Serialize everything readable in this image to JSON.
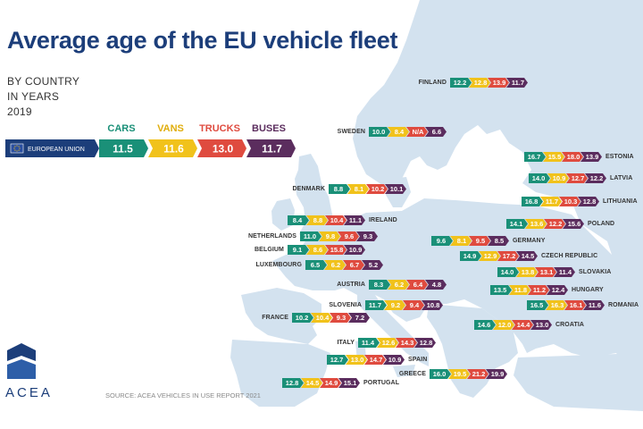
{
  "header": {
    "title": "Average age of the EU vehicle fleet",
    "subtitle_lines": [
      "BY COUNTRY",
      "IN YEARS",
      "2019"
    ]
  },
  "colors": {
    "cars": "#1a9078",
    "vans": "#f1c21b",
    "trucks": "#df4b3f",
    "buses": "#5b2d5e",
    "map": "#d3e2ef",
    "brand": "#1c3e7a"
  },
  "categories": [
    {
      "key": "cars",
      "label": "CARS",
      "color": "#1a9078"
    },
    {
      "key": "vans",
      "label": "VANS",
      "color": "#f1c21b"
    },
    {
      "key": "trucks",
      "label": "TRUCKS",
      "color": "#df4b3f"
    },
    {
      "key": "buses",
      "label": "BUSES",
      "color": "#5b2d5e"
    }
  ],
  "footer": {
    "logo": "ACEA",
    "source": "SOURCE: ACEA VEHICLES IN USE REPORT 2021"
  },
  "chart_data": {
    "type": "table",
    "title": "Average age of the EU vehicle fleet",
    "columns": [
      "CARS",
      "VANS",
      "TRUCKS",
      "BUSES"
    ],
    "eu": {
      "name": "EUROPEAN UNION",
      "values": [
        "11.5",
        "11.6",
        "13.0",
        "11.7"
      ]
    },
    "rows": [
      {
        "name": "FINLAND",
        "values": [
          "12.2",
          "12.8",
          "13.9",
          "11.7"
        ]
      },
      {
        "name": "SWEDEN",
        "values": [
          "10.0",
          "8.4",
          "N/A",
          "6.6"
        ]
      },
      {
        "name": "ESTONIA",
        "values": [
          "16.7",
          "15.5",
          "18.0",
          "13.9"
        ]
      },
      {
        "name": "LATVIA",
        "values": [
          "14.0",
          "10.9",
          "12.7",
          "12.2"
        ]
      },
      {
        "name": "LITHUANIA",
        "values": [
          "16.8",
          "11.7",
          "10.3",
          "12.8"
        ]
      },
      {
        "name": "DENMARK",
        "values": [
          "8.8",
          "8.1",
          "10.2",
          "10.1"
        ]
      },
      {
        "name": "IRELAND",
        "values": [
          "8.4",
          "8.8",
          "10.4",
          "11.1"
        ]
      },
      {
        "name": "NETHERLANDS",
        "values": [
          "11.0",
          "9.8",
          "9.6",
          "9.3"
        ]
      },
      {
        "name": "BELGIUM",
        "values": [
          "9.1",
          "8.6",
          "15.8",
          "10.9"
        ]
      },
      {
        "name": "LUXEMBOURG",
        "values": [
          "6.5",
          "6.2",
          "6.7",
          "5.2"
        ]
      },
      {
        "name": "POLAND",
        "values": [
          "14.1",
          "13.6",
          "12.2",
          "15.6"
        ]
      },
      {
        "name": "GERMANY",
        "values": [
          "9.6",
          "8.1",
          "9.5",
          "8.5"
        ]
      },
      {
        "name": "CZECH REPUBLIC",
        "values": [
          "14.9",
          "12.9",
          "17.2",
          "14.5"
        ]
      },
      {
        "name": "SLOVAKIA",
        "values": [
          "14.0",
          "13.8",
          "13.1",
          "11.4"
        ]
      },
      {
        "name": "AUSTRIA",
        "values": [
          "8.3",
          "6.2",
          "6.4",
          "4.8"
        ]
      },
      {
        "name": "HUNGARY",
        "values": [
          "13.5",
          "11.8",
          "11.2",
          "12.4"
        ]
      },
      {
        "name": "ROMANIA",
        "values": [
          "16.5",
          "16.3",
          "16.1",
          "11.6"
        ]
      },
      {
        "name": "SLOVENIA",
        "values": [
          "11.7",
          "9.2",
          "9.4",
          "10.8"
        ]
      },
      {
        "name": "FRANCE",
        "values": [
          "10.2",
          "10.4",
          "9.3",
          "7.2"
        ]
      },
      {
        "name": "CROATIA",
        "values": [
          "14.6",
          "12.0",
          "14.4",
          "13.0"
        ]
      },
      {
        "name": "ITALY",
        "values": [
          "11.4",
          "12.6",
          "14.3",
          "12.8"
        ]
      },
      {
        "name": "SPAIN",
        "values": [
          "12.7",
          "13.0",
          "14.7",
          "10.9"
        ]
      },
      {
        "name": "GREECE",
        "values": [
          "16.0",
          "19.5",
          "21.2",
          "19.9"
        ]
      },
      {
        "name": "PORTUGAL",
        "values": [
          "12.8",
          "14.5",
          "14.9",
          "15.1"
        ]
      }
    ]
  }
}
